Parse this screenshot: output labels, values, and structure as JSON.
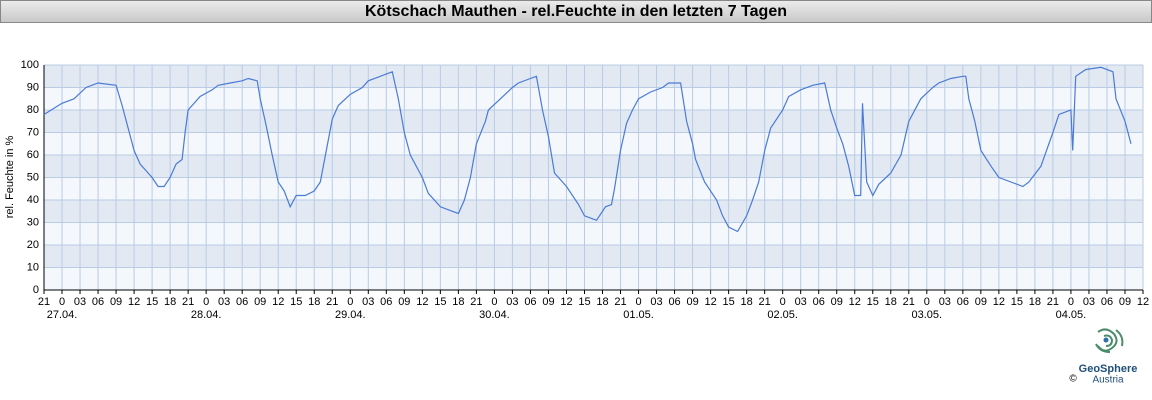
{
  "chart_data": {
    "type": "line",
    "title": "Kötschach Mauthen - rel.Feuchte in den letzten 7 Tagen",
    "y_label": "rel. Feuchte in %",
    "logo_text": "GeoSphere",
    "logo_subtext": "Austria",
    "copyright": "©",
    "color": "#4a7bd6",
    "grid": true,
    "xlim": [
      0,
      183
    ],
    "ylim": [
      0,
      100
    ],
    "yticks": [
      0,
      10,
      20,
      30,
      40,
      50,
      60,
      70,
      80,
      90,
      100
    ],
    "xticks": [
      {
        "value": 0,
        "label": "21"
      },
      {
        "value": 3,
        "label": "0"
      },
      {
        "value": 6,
        "label": "03"
      },
      {
        "value": 9,
        "label": "06"
      },
      {
        "value": 12,
        "label": "09"
      },
      {
        "value": 15,
        "label": "12"
      },
      {
        "value": 18,
        "label": "15"
      },
      {
        "value": 21,
        "label": "18"
      },
      {
        "value": 24,
        "label": "21"
      },
      {
        "value": 27,
        "label": "0"
      },
      {
        "value": 30,
        "label": "03"
      },
      {
        "value": 33,
        "label": "06"
      },
      {
        "value": 36,
        "label": "09"
      },
      {
        "value": 39,
        "label": "12"
      },
      {
        "value": 42,
        "label": "15"
      },
      {
        "value": 45,
        "label": "18"
      },
      {
        "value": 48,
        "label": "21"
      },
      {
        "value": 51,
        "label": "0"
      },
      {
        "value": 54,
        "label": "03"
      },
      {
        "value": 57,
        "label": "06"
      },
      {
        "value": 60,
        "label": "09"
      },
      {
        "value": 63,
        "label": "12"
      },
      {
        "value": 66,
        "label": "15"
      },
      {
        "value": 69,
        "label": "18"
      },
      {
        "value": 72,
        "label": "21"
      },
      {
        "value": 75,
        "label": "0"
      },
      {
        "value": 78,
        "label": "03"
      },
      {
        "value": 81,
        "label": "06"
      },
      {
        "value": 84,
        "label": "09"
      },
      {
        "value": 87,
        "label": "12"
      },
      {
        "value": 90,
        "label": "15"
      },
      {
        "value": 93,
        "label": "18"
      },
      {
        "value": 96,
        "label": "21"
      },
      {
        "value": 99,
        "label": "0"
      },
      {
        "value": 102,
        "label": "03"
      },
      {
        "value": 105,
        "label": "06"
      },
      {
        "value": 108,
        "label": "09"
      },
      {
        "value": 111,
        "label": "12"
      },
      {
        "value": 114,
        "label": "15"
      },
      {
        "value": 117,
        "label": "18"
      },
      {
        "value": 120,
        "label": "21"
      },
      {
        "value": 123,
        "label": "0"
      },
      {
        "value": 126,
        "label": "03"
      },
      {
        "value": 129,
        "label": "06"
      },
      {
        "value": 132,
        "label": "09"
      },
      {
        "value": 135,
        "label": "12"
      },
      {
        "value": 138,
        "label": "15"
      },
      {
        "value": 141,
        "label": "18"
      },
      {
        "value": 144,
        "label": "21"
      },
      {
        "value": 147,
        "label": "0"
      },
      {
        "value": 150,
        "label": "03"
      },
      {
        "value": 153,
        "label": "06"
      },
      {
        "value": 156,
        "label": "09"
      },
      {
        "value": 159,
        "label": "12"
      },
      {
        "value": 162,
        "label": "15"
      },
      {
        "value": 165,
        "label": "18"
      },
      {
        "value": 168,
        "label": "21"
      },
      {
        "value": 171,
        "label": "0"
      },
      {
        "value": 174,
        "label": "03"
      },
      {
        "value": 177,
        "label": "06"
      },
      {
        "value": 180,
        "label": "09"
      },
      {
        "value": 183,
        "label": "12"
      }
    ],
    "date_labels": [
      {
        "value": 3,
        "label": "27.04."
      },
      {
        "value": 27,
        "label": "28.04."
      },
      {
        "value": 51,
        "label": "29.04."
      },
      {
        "value": 75,
        "label": "30.04."
      },
      {
        "value": 99,
        "label": "01.05."
      },
      {
        "value": 123,
        "label": "02.05."
      },
      {
        "value": 147,
        "label": "03.05."
      },
      {
        "value": 171,
        "label": "04.05."
      }
    ],
    "x": [
      0,
      3,
      5,
      7,
      9,
      12,
      13,
      14,
      15,
      16,
      18,
      19,
      20,
      21,
      22,
      23,
      23.5,
      24,
      26,
      28,
      29,
      31,
      33,
      34,
      35.5,
      36,
      37,
      38,
      39,
      40,
      41,
      42,
      43.5,
      45,
      46,
      47,
      48,
      49,
      51,
      53,
      54,
      56,
      58,
      59,
      60,
      61,
      63,
      64,
      66,
      68,
      69,
      70,
      71,
      72,
      73.5,
      74,
      76,
      78,
      79,
      81,
      82,
      83,
      84,
      84.5,
      85,
      87,
      89,
      90,
      92,
      93.5,
      94.5,
      95,
      96,
      97,
      98,
      99,
      101,
      103,
      104,
      106,
      107,
      108,
      108.5,
      110,
      112,
      113,
      114,
      115.5,
      117,
      118,
      119,
      120,
      121,
      123,
      124,
      126,
      128,
      130,
      131,
      132,
      133,
      134,
      135,
      136,
      136.3,
      137,
      138,
      139,
      141,
      142.7,
      144,
      146,
      148,
      149,
      151,
      153,
      153.5,
      154,
      155,
      156,
      157.7,
      159,
      161,
      163,
      164,
      166,
      168,
      169,
      171,
      171.3,
      171.8,
      173.5,
      176,
      178,
      178.5,
      180,
      181
    ],
    "values": [
      78,
      83,
      85,
      90,
      92,
      91,
      82,
      72,
      62,
      56,
      50,
      46,
      46,
      50,
      56,
      58,
      70,
      80,
      86,
      89,
      91,
      92,
      93,
      94,
      93,
      85,
      73,
      60,
      48,
      44,
      37,
      42,
      42,
      44,
      48,
      62,
      76,
      82,
      87,
      90,
      93,
      95,
      97,
      85,
      70,
      60,
      50,
      43,
      37,
      35,
      34,
      40,
      50,
      65,
      75,
      80,
      85,
      90,
      92,
      94,
      95,
      80,
      68,
      60,
      52,
      46,
      38,
      33,
      31,
      37,
      38,
      45,
      62,
      74,
      80,
      85,
      88,
      90,
      92,
      92,
      75,
      65,
      58,
      48,
      40,
      33,
      28,
      26,
      33,
      40,
      48,
      62,
      72,
      80,
      86,
      89,
      91,
      92,
      80,
      72,
      65,
      55,
      42,
      42,
      83,
      48,
      42,
      47,
      52,
      60,
      75,
      85,
      90,
      92,
      94,
      95,
      95,
      85,
      75,
      62,
      55,
      50,
      48,
      46,
      48,
      55,
      70,
      78,
      80,
      62,
      95,
      98,
      99,
      97,
      85,
      75,
      65
    ]
  }
}
